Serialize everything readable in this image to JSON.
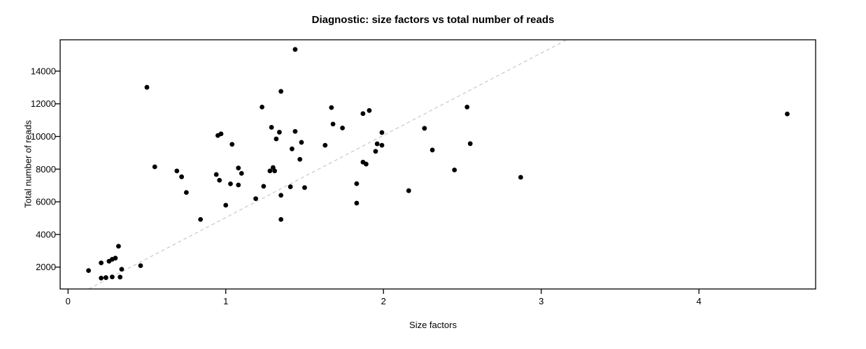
{
  "page": {
    "background": "#ffffff"
  },
  "chart_data": {
    "type": "scatter",
    "title": "Diagnostic: size factors vs total number of reads",
    "xlabel": "Size factors",
    "ylabel": "Total number of reads",
    "xlim": [
      -0.05,
      4.74
    ],
    "ylim": [
      662,
      15920
    ],
    "x_ticks": [
      0,
      1,
      2,
      3,
      4
    ],
    "y_ticks": [
      2000,
      4000,
      6000,
      8000,
      10000,
      12000,
      14000
    ],
    "grid": false,
    "legend": "none",
    "point_color": "#000000",
    "point_radius": 3.4,
    "box_color": "#000000",
    "trend_line": {
      "type": "abline",
      "intercept": 0,
      "slope": 5035,
      "color": "#c8c8c8",
      "dash": "5,4"
    },
    "points": [
      [
        0.13,
        1790
      ],
      [
        0.21,
        2260
      ],
      [
        0.21,
        1330
      ],
      [
        0.24,
        1360
      ],
      [
        0.26,
        2360
      ],
      [
        0.28,
        2480
      ],
      [
        0.28,
        1400
      ],
      [
        0.3,
        2550
      ],
      [
        0.32,
        3280
      ],
      [
        0.33,
        1390
      ],
      [
        0.34,
        1870
      ],
      [
        0.46,
        2090
      ],
      [
        0.5,
        13010
      ],
      [
        0.55,
        8140
      ],
      [
        0.69,
        7890
      ],
      [
        0.72,
        7530
      ],
      [
        0.75,
        6570
      ],
      [
        0.84,
        4920
      ],
      [
        0.94,
        7670
      ],
      [
        0.95,
        10060
      ],
      [
        0.96,
        7320
      ],
      [
        0.97,
        10160
      ],
      [
        1.0,
        5790
      ],
      [
        1.03,
        7100
      ],
      [
        1.04,
        9520
      ],
      [
        1.08,
        8070
      ],
      [
        1.08,
        7030
      ],
      [
        1.1,
        7740
      ],
      [
        1.19,
        6190
      ],
      [
        1.23,
        11800
      ],
      [
        1.24,
        6950
      ],
      [
        1.28,
        7890
      ],
      [
        1.29,
        10560
      ],
      [
        1.3,
        8100
      ],
      [
        1.31,
        7890
      ],
      [
        1.32,
        9850
      ],
      [
        1.34,
        10260
      ],
      [
        1.35,
        12760
      ],
      [
        1.35,
        6400
      ],
      [
        1.35,
        4920
      ],
      [
        1.41,
        6920
      ],
      [
        1.42,
        9240
      ],
      [
        1.44,
        15330
      ],
      [
        1.44,
        10310
      ],
      [
        1.47,
        8600
      ],
      [
        1.48,
        9640
      ],
      [
        1.5,
        6870
      ],
      [
        1.63,
        9460
      ],
      [
        1.67,
        11770
      ],
      [
        1.68,
        10760
      ],
      [
        1.74,
        10520
      ],
      [
        1.83,
        7110
      ],
      [
        1.83,
        5920
      ],
      [
        1.87,
        11400
      ],
      [
        1.87,
        8430
      ],
      [
        1.89,
        8310
      ],
      [
        1.91,
        11590
      ],
      [
        1.95,
        9090
      ],
      [
        1.96,
        9550
      ],
      [
        1.99,
        10240
      ],
      [
        1.99,
        9460
      ],
      [
        2.16,
        6680
      ],
      [
        2.26,
        10500
      ],
      [
        2.31,
        9170
      ],
      [
        2.45,
        7950
      ],
      [
        2.53,
        11800
      ],
      [
        2.55,
        9560
      ],
      [
        2.87,
        7500
      ],
      [
        4.56,
        11380
      ]
    ]
  }
}
